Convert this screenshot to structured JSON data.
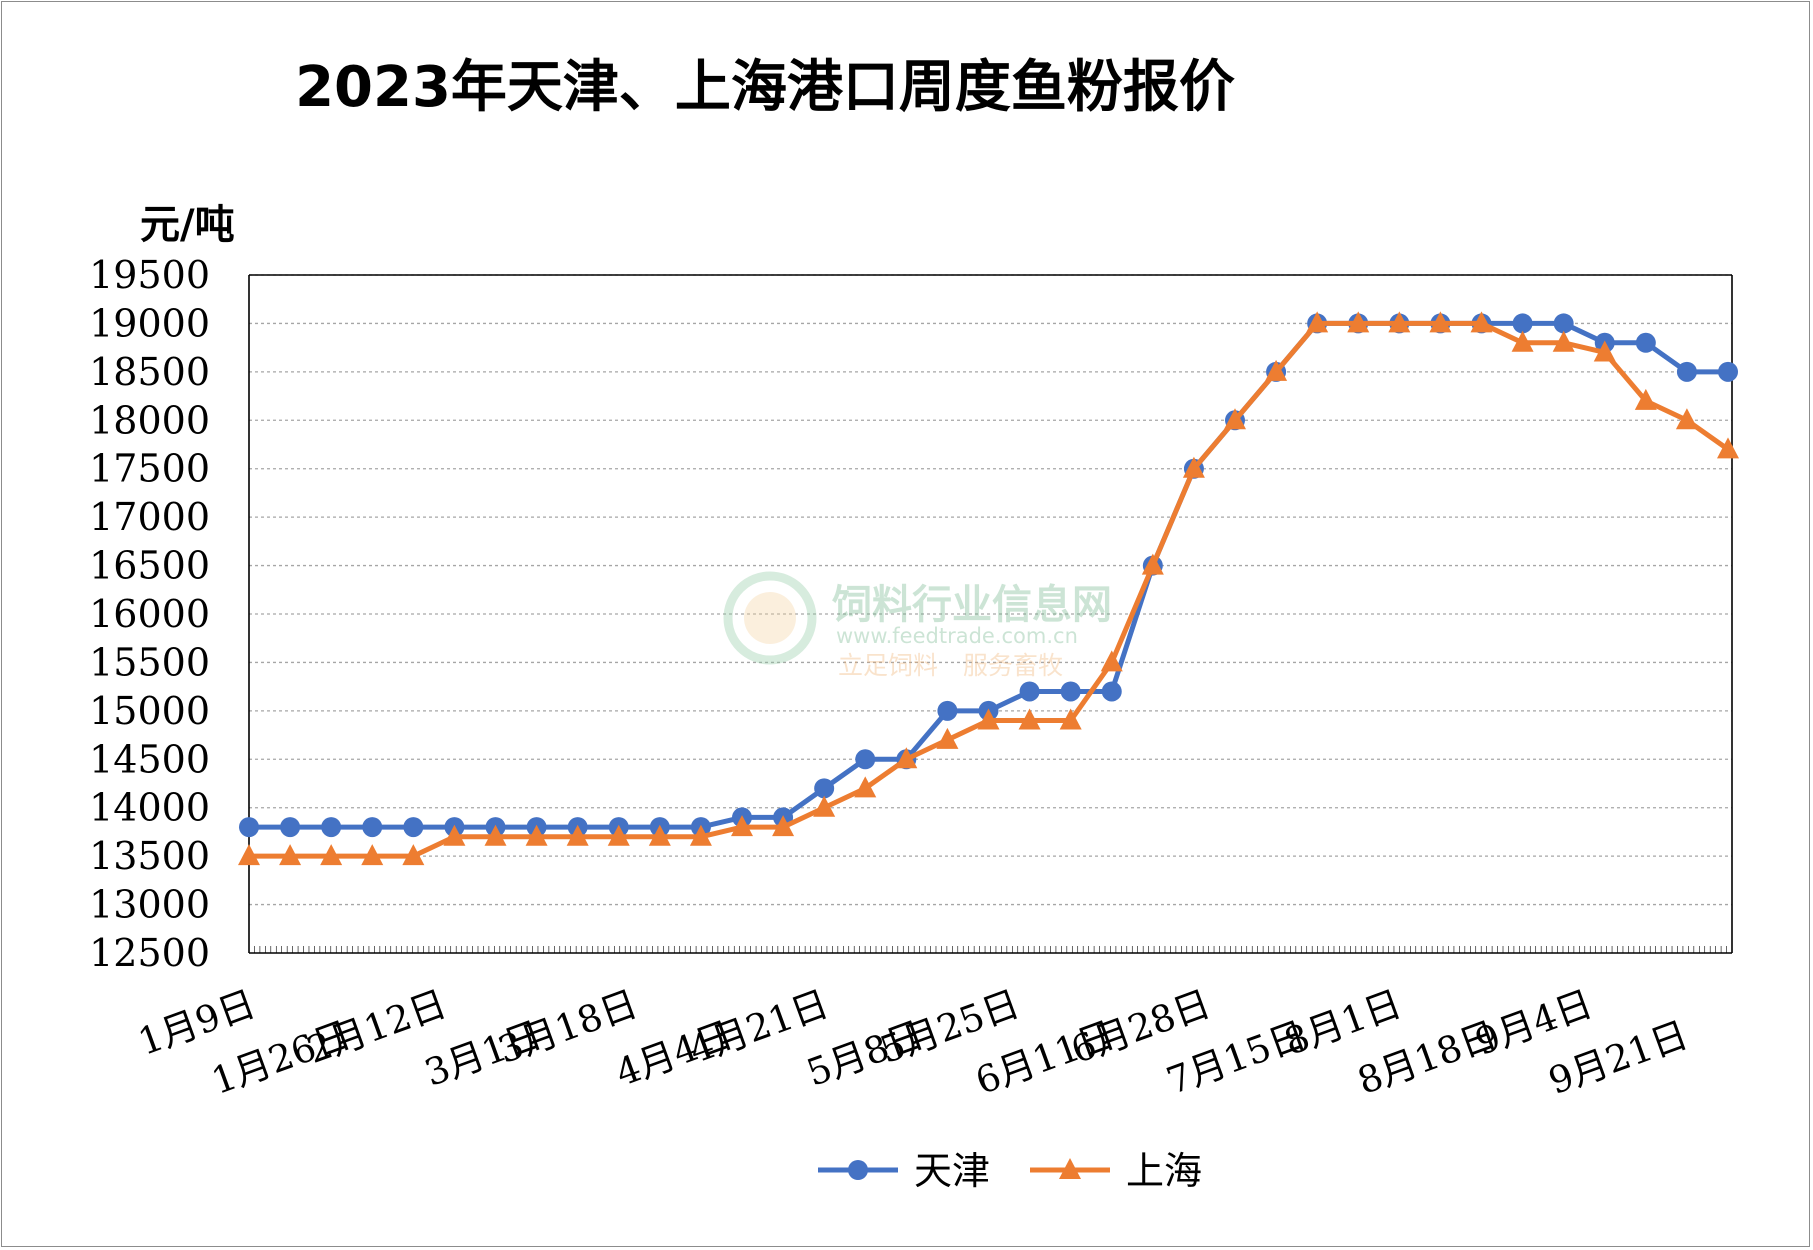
{
  "chart_data": {
    "type": "line",
    "title": "2023年天津、上海港口周度鱼粉报价",
    "ylabel": "元/吨",
    "xlabel": "",
    "ylim": [
      12500,
      19500
    ],
    "y_ticks": [
      12500,
      13000,
      13500,
      14000,
      14500,
      15000,
      15500,
      16000,
      16500,
      17000,
      17500,
      18000,
      18500,
      19000,
      19500
    ],
    "grid": "horizontal dotted",
    "legend_position": "bottom",
    "x_tick_labels": [
      "1月9日",
      "1月26日",
      "2月12日",
      "3月1日",
      "3月18日",
      "4月4日",
      "4月21日",
      "5月8日",
      "5月25日",
      "6月11日",
      "6月28日",
      "7月15日",
      "8月1日",
      "8月18日",
      "9月4日",
      "9月21日"
    ],
    "x_start": "2023-01-09",
    "x_end": "2023-10-08",
    "series": [
      {
        "name": "天津",
        "color": "#4472c4",
        "marker": "circle",
        "values": [
          13800,
          13800,
          13800,
          13800,
          13800,
          13800,
          13800,
          13800,
          13800,
          13800,
          13800,
          13800,
          13900,
          13900,
          14200,
          14500,
          14500,
          15000,
          15000,
          15200,
          15200,
          15200,
          16500,
          17500,
          18000,
          18500,
          19000,
          19000,
          19000,
          19000,
          19000,
          19000,
          19000,
          18800,
          18800,
          18500,
          18500
        ]
      },
      {
        "name": "上海",
        "color": "#ed7d31",
        "marker": "triangle",
        "values": [
          13500,
          13500,
          13500,
          13500,
          13500,
          13700,
          13700,
          13700,
          13700,
          13700,
          13700,
          13700,
          13800,
          13800,
          14000,
          14200,
          14500,
          14700,
          14900,
          14900,
          14900,
          15500,
          16500,
          17500,
          18000,
          18500,
          19000,
          19000,
          19000,
          19000,
          19000,
          18800,
          18800,
          18700,
          18200,
          18000,
          17700
        ]
      }
    ]
  },
  "watermark": {
    "name": "饲料行业信息网",
    "url": "www.feedtrade.com.cn",
    "slogan": "立足饲料　服务畜牧"
  }
}
